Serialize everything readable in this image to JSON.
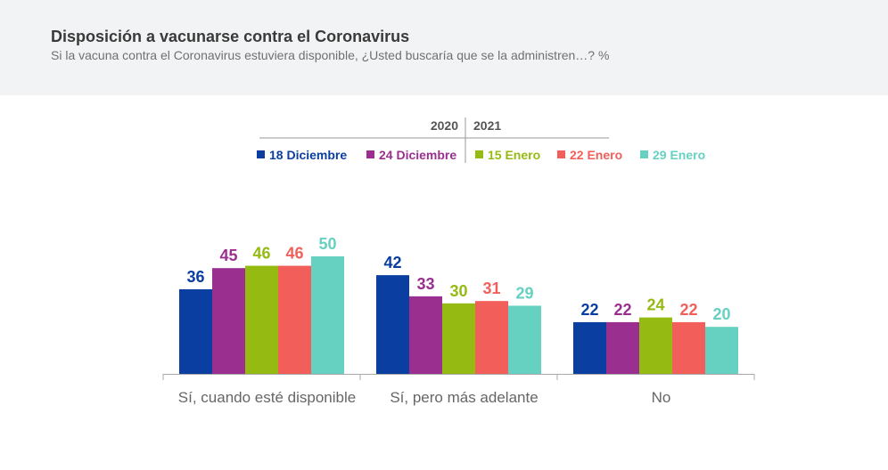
{
  "header": {
    "title": "Disposición a vacunarse contra el Coronavirus",
    "subtitle": "Si la vacuna contra el Coronavirus estuviera disponible, ¿Usted buscaría que se la administren…? %"
  },
  "chart_data": {
    "type": "bar",
    "year_labels": [
      "2020",
      "2021"
    ],
    "categories": [
      "Sí, cuando esté disponible",
      "Sí, pero más adelante",
      "No"
    ],
    "series": [
      {
        "name": "18 Diciembre",
        "color": "#0a3ea0",
        "values": [
          36,
          42,
          22
        ]
      },
      {
        "name": "24 Diciembre",
        "color": "#9b2f8f",
        "values": [
          45,
          33,
          22
        ]
      },
      {
        "name": "15 Enero",
        "color": "#95bb12",
        "values": [
          46,
          30,
          24
        ]
      },
      {
        "name": "22 Enero",
        "color": "#f25f5a",
        "values": [
          46,
          31,
          22
        ]
      },
      {
        "name": "29 Enero",
        "color": "#66d1c1",
        "values": [
          50,
          29,
          20
        ]
      }
    ],
    "legend": "top",
    "grid": false
  }
}
